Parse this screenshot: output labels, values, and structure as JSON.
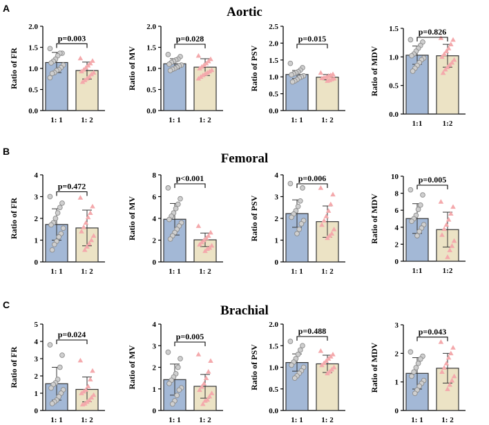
{
  "colors": {
    "bar_a": "#a3b8d6",
    "bar_b": "#ece3c5",
    "edge": "#333333",
    "circle_fill": "#cfcfcf",
    "circle_edge": "#8a8a8a",
    "triangle": "#f4a9ac"
  },
  "chart_data": [
    {
      "type": "bar",
      "section": "Aortic",
      "panel_letter": "A",
      "ylabel": "Ratio of FR",
      "categories": [
        "1: 1",
        "1: 2"
      ],
      "values": [
        1.14,
        0.95
      ],
      "errors": [
        0.24,
        0.2
      ],
      "ylim": [
        0.0,
        2.0
      ],
      "yticks": [
        "0.0",
        "0.5",
        "1.0",
        "1.5",
        "2.0"
      ],
      "pvalue": "p=0.003",
      "points": [
        [
          1.47,
          1.36,
          1.36,
          1.3,
          1.22,
          1.17,
          1.13,
          1.08,
          1.02,
          0.97,
          0.95,
          0.9,
          0.88,
          0.78
        ],
        [
          1.24,
          1.18,
          1.12,
          1.07,
          1.02,
          0.97,
          0.93,
          0.9,
          0.86,
          0.8,
          0.76,
          0.72,
          0.68
        ]
      ]
    },
    {
      "type": "bar",
      "section": "Aortic",
      "ylabel": "Ratio of MV",
      "categories": [
        "1: 1",
        "1: 2"
      ],
      "values": [
        1.11,
        1.03
      ],
      "errors": [
        0.12,
        0.2
      ],
      "ylim": [
        0.0,
        2.0
      ],
      "yticks": [
        "0.0",
        "0.5",
        "1.0",
        "1.5",
        "2.0"
      ],
      "pvalue": "p=0.028",
      "points": [
        [
          1.33,
          1.28,
          1.22,
          1.2,
          1.17,
          1.14,
          1.1,
          1.08,
          1.06,
          1.03,
          1.0,
          0.98,
          0.95
        ],
        [
          1.3,
          1.22,
          1.17,
          1.12,
          1.08,
          1.04,
          1.0,
          0.96,
          0.93,
          0.9,
          0.87,
          0.84,
          0.8,
          0.76
        ]
      ]
    },
    {
      "type": "bar",
      "section": "Aortic",
      "ylabel": "Ratio of PSV",
      "categories": [
        "1: 1",
        "1: 2"
      ],
      "values": [
        1.07,
        0.99
      ],
      "errors": [
        0.12,
        0.08
      ],
      "ylim": [
        0.0,
        2.5
      ],
      "yticks": [
        "0.0",
        "0.5",
        "1.0",
        "1.5",
        "2.0",
        "2.5"
      ],
      "pvalue": "p=0.015",
      "points": [
        [
          1.4,
          1.27,
          1.2,
          1.15,
          1.12,
          1.09,
          1.06,
          1.03,
          1.0,
          0.97,
          0.92,
          0.88,
          0.85
        ],
        [
          1.12,
          1.08,
          1.05,
          1.03,
          1.0,
          0.98,
          0.96,
          0.95,
          0.93,
          0.9,
          0.88
        ]
      ]
    },
    {
      "type": "bar",
      "section": "Aortic",
      "ylabel": "Ratio of MDV",
      "categories": [
        "1:1",
        "1:2"
      ],
      "values": [
        1.03,
        1.02
      ],
      "errors": [
        0.16,
        0.2
      ],
      "ylim": [
        0.0,
        1.5
      ],
      "yticks": [
        "0.0",
        "0.5",
        "1.0",
        "1.5"
      ],
      "pvalue": "p=0.826",
      "points": [
        [
          1.3,
          1.26,
          1.2,
          1.15,
          1.1,
          1.05,
          1.02,
          0.98,
          0.95,
          0.9,
          0.85,
          0.8,
          0.75
        ],
        [
          1.33,
          1.3,
          1.22,
          1.15,
          1.1,
          1.05,
          1.0,
          0.95,
          0.9,
          0.86,
          0.82,
          0.78,
          0.72
        ]
      ]
    },
    {
      "type": "bar",
      "section": "Femoral",
      "panel_letter": "B",
      "ylabel": "Ratio of FR",
      "categories": [
        "1: 1",
        "1: 2"
      ],
      "values": [
        1.72,
        1.56
      ],
      "errors": [
        0.72,
        0.82
      ],
      "ylim": [
        0,
        4
      ],
      "yticks": [
        "0",
        "1",
        "2",
        "3",
        "4"
      ],
      "pvalue": "p=0.472",
      "points": [
        [
          3.0,
          2.7,
          2.5,
          2.25,
          2.0,
          1.8,
          1.7,
          1.55,
          1.3,
          1.15,
          0.95,
          0.8,
          0.55
        ],
        [
          2.95,
          2.55,
          2.25,
          2.05,
          1.8,
          1.6,
          1.4,
          1.2,
          1.0,
          0.85,
          0.7,
          0.55
        ]
      ]
    },
    {
      "type": "bar",
      "section": "Femoral",
      "ylabel": "Ratio of MV",
      "categories": [
        "1: 1",
        "1: 2"
      ],
      "values": [
        3.92,
        2.03
      ],
      "errors": [
        1.45,
        0.62
      ],
      "ylim": [
        0,
        8
      ],
      "yticks": [
        "0",
        "2",
        "4",
        "6",
        "8"
      ],
      "pvalue": "p<0.001",
      "points": [
        [
          6.8,
          5.8,
          5.3,
          4.9,
          4.5,
          4.2,
          3.9,
          3.6,
          3.3,
          3.0,
          2.7,
          2.4,
          2.1
        ],
        [
          3.3,
          2.7,
          2.4,
          2.2,
          2.0,
          1.8,
          1.6,
          1.5,
          1.3,
          1.2,
          1.0
        ]
      ]
    },
    {
      "type": "bar",
      "section": "Femoral",
      "ylabel": "Ratio of PSV",
      "categories": [
        "1: 1",
        "1: 2"
      ],
      "values": [
        2.22,
        1.85
      ],
      "errors": [
        0.63,
        0.72
      ],
      "ylim": [
        0,
        4
      ],
      "yticks": [
        "0",
        "1",
        "2",
        "3",
        "4"
      ],
      "pvalue": "p=0.006",
      "points": [
        [
          3.6,
          3.4,
          2.8,
          2.55,
          2.35,
          2.2,
          2.05,
          1.9,
          1.75,
          1.5,
          1.3
        ],
        [
          3.4,
          3.1,
          2.65,
          2.35,
          2.1,
          1.9,
          1.7,
          1.5,
          1.3,
          1.2,
          1.1
        ]
      ]
    },
    {
      "type": "bar",
      "section": "Femoral",
      "ylabel": "Ratio of MDV",
      "categories": [
        "1:1",
        "1:2"
      ],
      "values": [
        5.02,
        3.72
      ],
      "errors": [
        1.75,
        2.05
      ],
      "ylim": [
        0,
        10
      ],
      "yticks": [
        "0",
        "2",
        "4",
        "6",
        "8",
        "10"
      ],
      "pvalue": "p=0.005",
      "points": [
        [
          8.4,
          7.8,
          6.6,
          6.1,
          5.4,
          5.0,
          4.7,
          4.3,
          3.9,
          3.5,
          3.0
        ],
        [
          7.0,
          6.4,
          5.6,
          4.9,
          4.3,
          3.8,
          3.1,
          2.4,
          1.8,
          1.3,
          0.5
        ]
      ]
    },
    {
      "type": "bar",
      "section": "Brachial",
      "panel_letter": "C",
      "ylabel": "Ratio of FR",
      "categories": [
        "1: 1",
        "1: 2"
      ],
      "values": [
        1.55,
        1.22
      ],
      "errors": [
        0.95,
        0.72
      ],
      "ylim": [
        0,
        5
      ],
      "yticks": [
        "0",
        "1",
        "2",
        "3",
        "4",
        "5"
      ],
      "pvalue": "p=0.024",
      "points": [
        [
          3.8,
          3.2,
          2.5,
          1.8,
          1.6,
          1.5,
          1.3,
          1.2,
          1.0,
          0.8,
          0.6,
          0.5,
          0.4
        ],
        [
          2.9,
          2.3,
          1.8,
          1.4,
          1.2,
          1.1,
          1.0,
          0.9,
          0.75,
          0.6,
          0.5,
          0.4,
          0.35
        ]
      ]
    },
    {
      "type": "bar",
      "section": "Brachial",
      "ylabel": "Ratio of MV",
      "categories": [
        "1: 1",
        "1: 2"
      ],
      "values": [
        1.43,
        1.12
      ],
      "errors": [
        0.72,
        0.55
      ],
      "ylim": [
        0,
        4
      ],
      "yticks": [
        "0",
        "1",
        "2",
        "3",
        "4"
      ],
      "pvalue": "p=0.005",
      "points": [
        [
          2.7,
          2.4,
          2.0,
          1.7,
          1.55,
          1.4,
          1.25,
          1.05,
          0.95,
          0.7,
          0.45,
          0.3
        ],
        [
          2.6,
          2.3,
          1.8,
          1.5,
          1.25,
          1.1,
          0.95,
          0.8,
          0.65,
          0.5,
          0.45,
          0.3
        ]
      ]
    },
    {
      "type": "bar",
      "section": "Brachial",
      "ylabel": "Ratio of PSV",
      "categories": [
        "1: 1",
        "1: 2"
      ],
      "values": [
        1.11,
        1.08
      ],
      "errors": [
        0.2,
        0.2
      ],
      "ylim": [
        0.0,
        2.0
      ],
      "yticks": [
        "0.0",
        "0.5",
        "1.0",
        "1.5",
        "2.0"
      ],
      "pvalue": "p=0.488",
      "points": [
        [
          1.6,
          1.5,
          1.4,
          1.3,
          1.2,
          1.12,
          1.05,
          1.0,
          0.92,
          0.86,
          0.8,
          0.75
        ],
        [
          1.38,
          1.3,
          1.25,
          1.2,
          1.15,
          1.1,
          1.05,
          1.0,
          0.95,
          0.9,
          0.86
        ]
      ]
    },
    {
      "type": "bar",
      "section": "Brachial",
      "ylabel": "Ratio of MDV",
      "categories": [
        "1: 1",
        "1: 2"
      ],
      "values": [
        1.3,
        1.48
      ],
      "errors": [
        0.55,
        0.52
      ],
      "ylim": [
        0,
        3
      ],
      "yticks": [
        "0",
        "1",
        "2",
        "3"
      ],
      "pvalue": "p=0.043",
      "points": [
        [
          2.05,
          1.9,
          1.8,
          1.65,
          1.5,
          1.35,
          1.2,
          1.05,
          0.95,
          0.85,
          0.72,
          0.6
        ],
        [
          2.4,
          2.2,
          2.0,
          1.85,
          1.65,
          1.5,
          1.35,
          1.2,
          1.05,
          0.9,
          0.75
        ]
      ]
    }
  ]
}
